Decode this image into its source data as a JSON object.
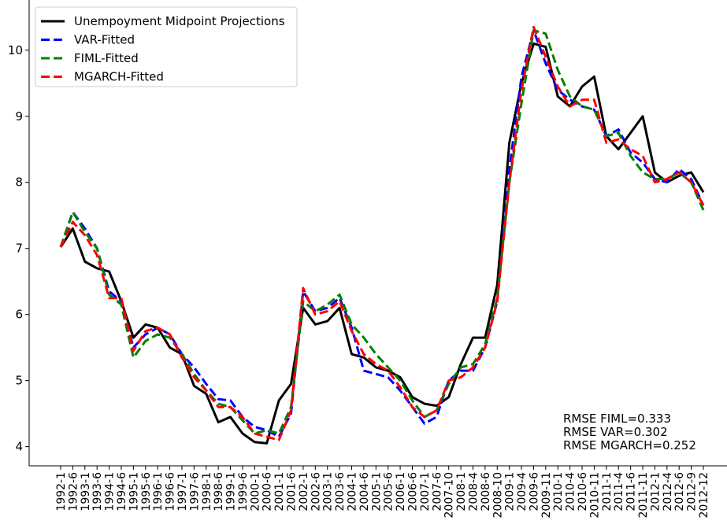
{
  "chart_data": {
    "type": "line",
    "categories": [
      "1992-1",
      "1992-6",
      "1993-1",
      "1993-6",
      "1994-1",
      "1994-6",
      "1995-1",
      "1995-6",
      "1996-1",
      "1996-6",
      "1997-1",
      "1997-6",
      "1998-1",
      "1998-6",
      "1999-1",
      "1999-6",
      "2000-1",
      "2000-6",
      "2001-1",
      "2001-6",
      "2002-1",
      "2002-6",
      "2003-1",
      "2003-6",
      "2004-1",
      "2004-6",
      "2005-1",
      "2005-6",
      "2006-1",
      "2006-6",
      "2007-1",
      "2007-6",
      "2007-10",
      "2008-1",
      "2008-4",
      "2008-6",
      "2008-10",
      "2009-1",
      "2009-4",
      "2009-6",
      "2009-11",
      "2010-1",
      "2010-4",
      "2010-6",
      "2010-11",
      "2011-1",
      "2011-4",
      "2011-6",
      "2011-11",
      "2012-1",
      "2012-4",
      "2012-6",
      "2012-9",
      "2012-12"
    ],
    "series": [
      {
        "name": "Unempoyment Midpoint Projections",
        "color": "#000000",
        "dash": "solid",
        "values": [
          7.02,
          7.3,
          6.8,
          6.7,
          6.65,
          6.2,
          5.65,
          5.85,
          5.8,
          5.5,
          5.4,
          4.92,
          4.8,
          4.37,
          4.45,
          4.2,
          4.07,
          4.05,
          4.7,
          4.95,
          6.1,
          5.85,
          5.9,
          6.1,
          5.4,
          5.35,
          5.2,
          5.15,
          5.05,
          4.75,
          4.65,
          4.62,
          4.75,
          5.25,
          5.65,
          5.65,
          6.45,
          8.6,
          9.5,
          10.1,
          10.05,
          9.3,
          9.15,
          9.45,
          9.6,
          8.7,
          8.5,
          8.75,
          9.0,
          8.15,
          8.0,
          8.1,
          8.15,
          7.85
        ]
      },
      {
        "name": "VAR-Fitted",
        "color": "#0000ff",
        "dash": "dashed",
        "values": [
          7.02,
          7.55,
          7.3,
          7.0,
          6.35,
          6.2,
          5.5,
          5.7,
          5.8,
          5.7,
          5.4,
          5.2,
          4.95,
          4.72,
          4.7,
          4.45,
          4.3,
          4.25,
          4.15,
          4.5,
          6.35,
          6.05,
          6.1,
          6.25,
          5.8,
          5.15,
          5.1,
          5.05,
          4.85,
          4.6,
          4.35,
          4.45,
          5.0,
          5.15,
          5.15,
          5.5,
          6.2,
          8.2,
          9.6,
          10.3,
          9.8,
          9.4,
          9.25,
          9.15,
          9.1,
          8.7,
          8.8,
          8.45,
          8.3,
          8.05,
          8.0,
          8.2,
          8.05,
          7.65
        ]
      },
      {
        "name": "FIML-Fitted",
        "color": "#008000",
        "dash": "dashed",
        "values": [
          7.02,
          7.55,
          7.25,
          7.0,
          6.3,
          6.15,
          5.35,
          5.6,
          5.7,
          5.65,
          5.4,
          5.1,
          4.85,
          4.65,
          4.6,
          4.4,
          4.2,
          4.25,
          4.2,
          4.6,
          6.2,
          6.05,
          6.15,
          6.3,
          5.85,
          5.65,
          5.4,
          5.2,
          5.0,
          4.7,
          4.45,
          4.55,
          4.95,
          5.2,
          5.25,
          5.55,
          6.25,
          8.0,
          9.2,
          10.3,
          10.25,
          9.7,
          9.3,
          9.15,
          9.1,
          8.7,
          8.75,
          8.4,
          8.15,
          8.05,
          8.05,
          8.15,
          8.0,
          7.58
        ]
      },
      {
        "name": "MGARCH-Fitted",
        "color": "#ff0000",
        "dash": "dashed",
        "values": [
          7.02,
          7.4,
          7.2,
          6.9,
          6.25,
          6.25,
          5.45,
          5.75,
          5.8,
          5.7,
          5.35,
          5.05,
          4.85,
          4.6,
          4.6,
          4.45,
          4.2,
          4.15,
          4.1,
          4.55,
          6.4,
          6.0,
          6.05,
          6.2,
          5.75,
          5.4,
          5.25,
          5.15,
          4.9,
          4.6,
          4.45,
          4.55,
          5.0,
          5.05,
          5.2,
          5.5,
          6.2,
          8.0,
          9.4,
          10.35,
          9.9,
          9.45,
          9.15,
          9.25,
          9.25,
          8.6,
          8.65,
          8.5,
          8.4,
          8.0,
          8.05,
          8.15,
          8.0,
          7.65
        ]
      }
    ],
    "annotations": [
      "RMSE FIML=0.333",
      "RMSE VAR=0.302",
      "RMSE MGARCH=0.252"
    ],
    "ylim": [
      3.71,
      10.7
    ],
    "yticks": [
      4,
      5,
      6,
      7,
      8,
      9,
      10
    ],
    "grid": false,
    "legend": "upper left"
  }
}
